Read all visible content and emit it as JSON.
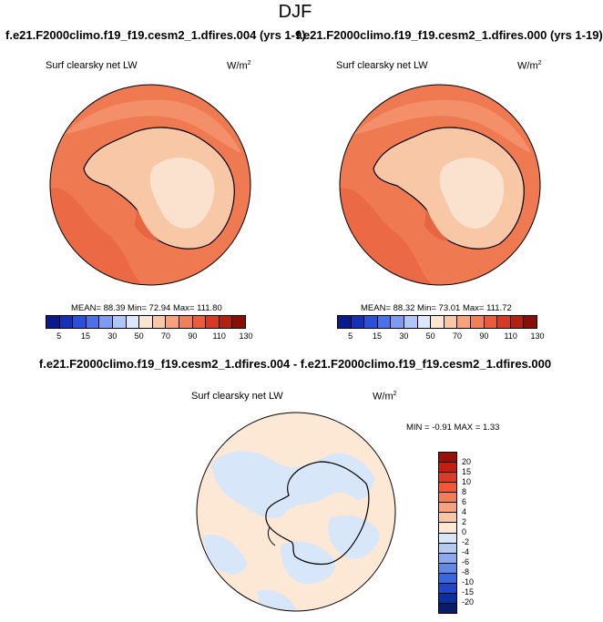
{
  "page": {
    "title": "DJF",
    "left_run": "f.e21.F2000climo.f19_f19.cesm2_1.dfires.004 (yrs 1-9)",
    "right_run": "f.e21.F2000climo.f19_f19.cesm2_1.dfires.000 (yrs 1-19)",
    "diff_title": "f.e21.F2000climo.f19_f19.cesm2_1.dfires.004 - f.e21.F2000climo.f19_f19.cesm2_1.dfires.000"
  },
  "panels": [
    {
      "variable": "Surf clearsky net LW",
      "units": "W/m",
      "units_exp": "2",
      "stats": "MEAN= 88.39  Min= 72.94  Max= 111.80"
    },
    {
      "variable": "Surf clearsky net LW",
      "units": "W/m",
      "units_exp": "2",
      "stats": "MEAN= 88.32  Min= 73.01  Max= 111.72"
    },
    {
      "variable": "Surf clearsky net LW",
      "units": "W/m",
      "units_exp": "2",
      "stats": "MIN =  -0.91 MAX =   1.33"
    }
  ],
  "colorbar_main": {
    "labels": [
      "5",
      "15",
      "30",
      "50",
      "70",
      "90",
      "110",
      "130"
    ],
    "colors": [
      "#0a1a8a",
      "#1531b8",
      "#2a4fd8",
      "#4a72ea",
      "#7c9cf2",
      "#b0c6f8",
      "#dde7fb",
      "#fbe6d3",
      "#f9c7a6",
      "#f6a27c",
      "#f27f58",
      "#ea5c3a",
      "#d63a24",
      "#b2200f",
      "#8a0e05"
    ]
  },
  "colorbar_diff": {
    "labels": [
      "20",
      "15",
      "10",
      "8",
      "6",
      "4",
      "2",
      "0",
      "-2",
      "-4",
      "-6",
      "-8",
      "-10",
      "-15",
      "-20"
    ],
    "colors": [
      "#9a0f06",
      "#c21f12",
      "#dc3a22",
      "#ee5a39",
      "#f47c56",
      "#f7a17e",
      "#f9c6a6",
      "#fde8d6",
      "#d8e6f9",
      "#b3cbf4",
      "#8aa9ee",
      "#5f88e8",
      "#3a66df",
      "#1f46c4",
      "#0c2f9a",
      "#071d6c"
    ]
  },
  "colors": {
    "ocean_main": "#ef7a52",
    "ocean_dark": "#e96440",
    "land_main": "#f8c7a5",
    "land_inner": "#fbe2cf",
    "diff_base": "#fde8d6",
    "diff_blue": "#d8e6f9"
  }
}
